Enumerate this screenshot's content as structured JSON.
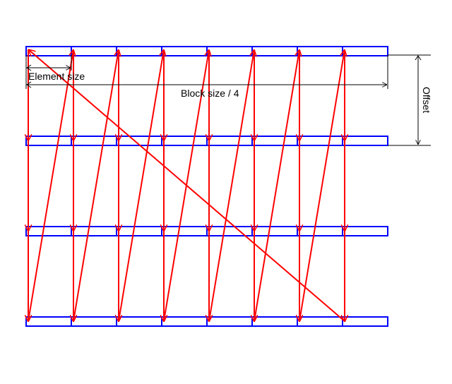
{
  "labels": {
    "element_size": "Element size",
    "block_size": "Block size / 4",
    "offset": "Offset"
  }
}
